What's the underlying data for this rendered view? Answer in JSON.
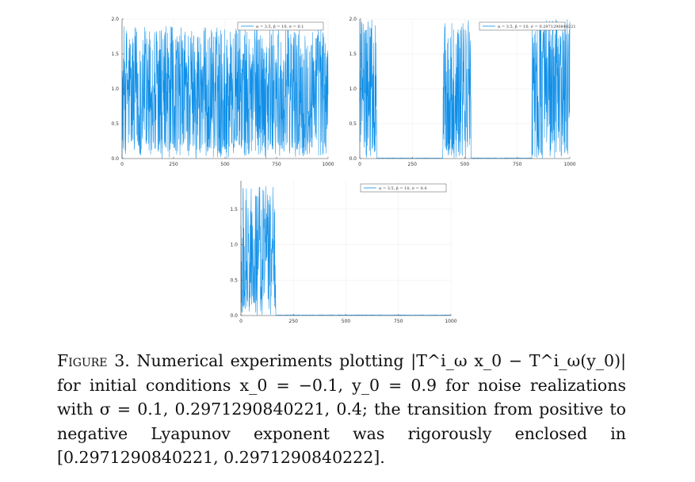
{
  "figure": {
    "caption": {
      "label": "Figure 3.",
      "text": "Numerical experiments plotting |T^i_ω x_0 − T^i_ω(y_0)| for initial conditions x_0 = −0.1, y_0 = 0.9 for noise realizations with σ = 0.1, 0.2971290840221, 0.4; the transition from positive to negative Lyapunov exponent was rigorously enclosed in [0.2971290840221, 0.2971290840222]."
    },
    "line_color": "#0f8fe8"
  },
  "chart_data": [
    {
      "type": "line",
      "legend": "α = 3.5, β = 10, σ = 0.1",
      "legend_position": "top-right",
      "xlim": [
        0,
        1000
      ],
      "ylim": [
        0,
        2.0
      ],
      "xticks": [
        0,
        250,
        500,
        750,
        1000
      ],
      "yticks": [
        0.0,
        0.5,
        1.0,
        1.5,
        2.0
      ],
      "ytick_labels": [
        "0.0",
        "0.5",
        "1.0",
        "1.5",
        "2.0"
      ],
      "grid": true,
      "regime": "chaotic throughout",
      "active_intervals": [
        [
          0,
          1000
        ]
      ],
      "peak": 1.9
    },
    {
      "type": "line",
      "legend": "α = 3.5, β = 10, σ = 0.2971290840221",
      "legend_position": "top-right",
      "xlim": [
        0,
        1000
      ],
      "ylim": [
        0,
        2.0
      ],
      "xticks": [
        0,
        250,
        500,
        750,
        1000
      ],
      "yticks": [
        0.0,
        0.5,
        1.0,
        1.5,
        2.0
      ],
      "ytick_labels": [
        "0.0",
        "0.5",
        "1.0",
        "1.5",
        "2.0"
      ],
      "grid": true,
      "regime": "intermittent bursts",
      "active_intervals": [
        [
          0,
          80
        ],
        [
          395,
          530
        ],
        [
          820,
          1000
        ]
      ],
      "peak": 2.0
    },
    {
      "type": "line",
      "legend": "α = 3.5, β = 10, σ = 0.4",
      "legend_position": "top-right",
      "xlim": [
        0,
        1000
      ],
      "ylim": [
        0,
        1.9
      ],
      "xticks": [
        0,
        250,
        500,
        750,
        1000
      ],
      "yticks": [
        0.0,
        0.5,
        1.0,
        1.5
      ],
      "ytick_labels": [
        "0.0",
        "0.5",
        "1.0",
        "1.5"
      ],
      "grid": true,
      "regime": "decays to zero",
      "active_intervals": [
        [
          0,
          165
        ]
      ],
      "peak": 1.85
    }
  ]
}
